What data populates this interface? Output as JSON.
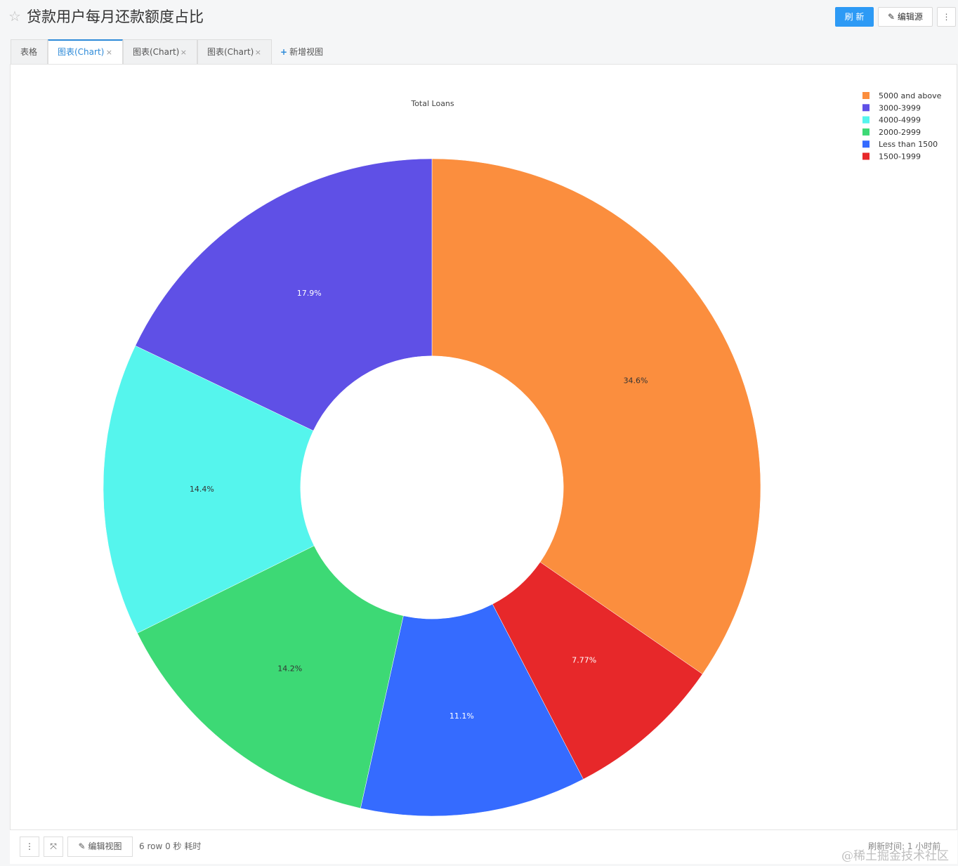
{
  "header": {
    "title": "贷款用户每月还款额度占比",
    "star_icon": "☆",
    "refresh_label": "刷 新",
    "edit_source_label": "编辑源",
    "more_label": "⋮"
  },
  "tabs": {
    "items": [
      {
        "label": "表格"
      },
      {
        "label": "图表(Chart)"
      },
      {
        "label": "图表(Chart)"
      },
      {
        "label": "图表(Chart)"
      }
    ],
    "close_icon": "×",
    "add_label": "新增视图"
  },
  "colors": {
    "accent": "#2d9af5"
  },
  "chart_data": {
    "type": "pie",
    "hole": 0.4,
    "title": "Total Loans",
    "legend_position": "top-right",
    "labels": [
      "5000 and above",
      "3000-3999",
      "4000-4999",
      "2000-2999",
      "Less than 1500",
      "1500-1999"
    ],
    "values": [
      34.6,
      17.9,
      14.4,
      14.2,
      11.1,
      7.77
    ],
    "value_labels": [
      "34.6%",
      "17.9%",
      "14.4%",
      "14.2%",
      "11.1%",
      "7.77%"
    ],
    "colors": [
      "#fb8e3e",
      "#5f50e6",
      "#55f5ed",
      "#3dd975",
      "#356bff",
      "#e7282a"
    ],
    "direction": "clockwise",
    "order_clockwise_from_top": [
      "5000 and above",
      "1500-1999",
      "Less than 1500",
      "2000-2999",
      "4000-4999",
      "3000-3999"
    ]
  },
  "footer": {
    "more_label": "⋮",
    "expand_label": "⤧",
    "edit_view_label": "编辑视图",
    "edit_icon": "✎",
    "status": "6 row 0 秒 耗时",
    "refresh_time": "刷新时间: 1 小时前",
    "watermark": "@稀土掘金技术社区"
  }
}
